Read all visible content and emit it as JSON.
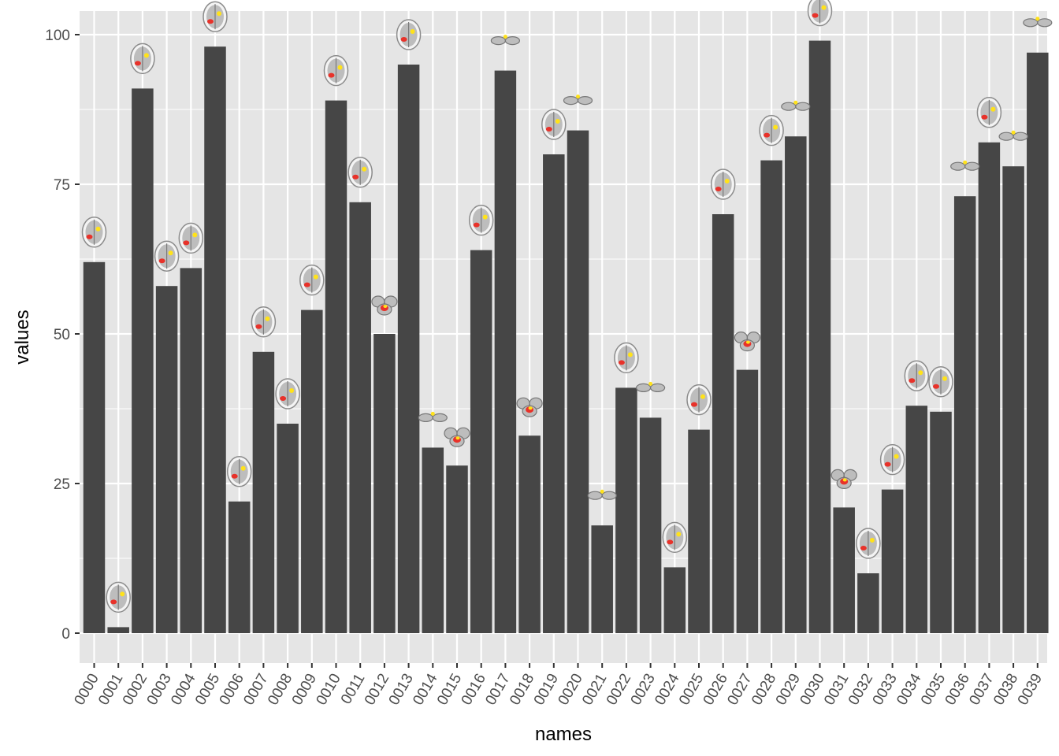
{
  "chart_data": {
    "type": "bar",
    "xlabel": "names",
    "ylabel": "values",
    "ylim": [
      -5,
      104
    ],
    "yticks": [
      0,
      25,
      50,
      75,
      100
    ],
    "grid": true,
    "colors": {
      "panel": "#e5e5e5",
      "grid": "#ffffff",
      "bar": "#464646",
      "tick_text": "#4d4d4d",
      "brain_gray": "#bdbdbd",
      "activation_red": "#e8322a",
      "activation_yellow": "#ffe21a"
    },
    "categories": [
      "0000",
      "0001",
      "0002",
      "0003",
      "0004",
      "0005",
      "0006",
      "0007",
      "0008",
      "0009",
      "0010",
      "0011",
      "0012",
      "0013",
      "0014",
      "0015",
      "0016",
      "0017",
      "0018",
      "0019",
      "0020",
      "0021",
      "0022",
      "0023",
      "0024",
      "0025",
      "0026",
      "0027",
      "0028",
      "0029",
      "0030",
      "0031",
      "0032",
      "0033",
      "0034",
      "0035",
      "0036",
      "0037",
      "0038",
      "0039"
    ],
    "values": [
      62,
      1,
      91,
      58,
      61,
      98,
      22,
      47,
      35,
      54,
      89,
      72,
      50,
      95,
      31,
      28,
      64,
      94,
      33,
      80,
      84,
      18,
      41,
      36,
      11,
      34,
      70,
      44,
      79,
      83,
      99,
      21,
      10,
      24,
      38,
      37,
      73,
      82,
      78,
      97
    ],
    "point_markers": {
      "icon": "brain-slice-icon",
      "variants": [
        "axial-full",
        "axial-full",
        "axial-full",
        "axial-full",
        "axial-full",
        "axial-full",
        "axial-full",
        "axial-full",
        "axial-full",
        "axial-full",
        "axial-full",
        "axial-full",
        "cerebellum",
        "axial-full",
        "cerebellum-small",
        "cerebellum",
        "axial-full",
        "cerebellum-small",
        "cerebellum",
        "axial-full",
        "cerebellum-small",
        "cerebellum-small",
        "axial-full",
        "cerebellum-small",
        "axial-full",
        "axial-full",
        "axial-full",
        "cerebellum",
        "axial-full",
        "cerebellum-small",
        "axial-full",
        "cerebellum",
        "axial-full",
        "axial-full",
        "axial-full",
        "axial-full",
        "cerebellum-small",
        "axial-full",
        "cerebellum-small",
        "cerebellum-small"
      ]
    }
  }
}
